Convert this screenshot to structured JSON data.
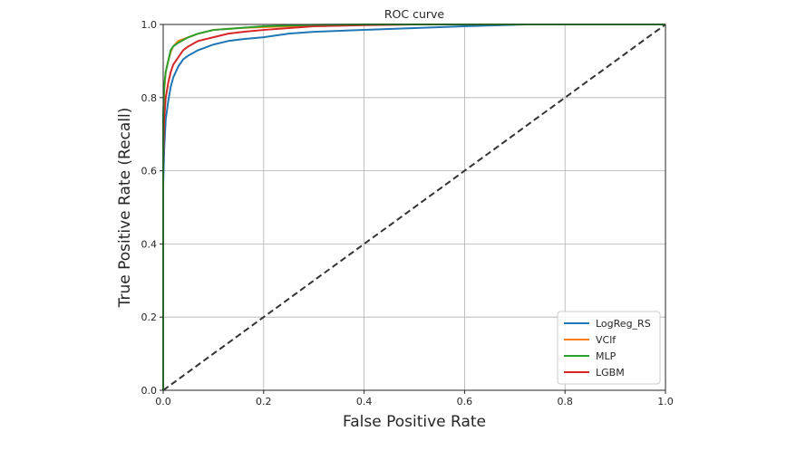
{
  "chart_data": {
    "type": "line",
    "title": "ROC curve",
    "xlabel": "False Positive Rate",
    "ylabel": "True Positive Rate (Recall)",
    "xlim": [
      0.0,
      1.0
    ],
    "ylim": [
      0.0,
      1.0
    ],
    "xticks": [
      "0.0",
      "0.2",
      "0.4",
      "0.6",
      "0.8",
      "1.0"
    ],
    "yticks": [
      "0.0",
      "0.2",
      "0.4",
      "0.6",
      "0.8",
      "1.0"
    ],
    "grid": true,
    "legend_position": "lower-right",
    "series": [
      {
        "name": "LogReg_RS",
        "color": "#1f77b4",
        "x": [
          0,
          0,
          0.002,
          0.005,
          0.01,
          0.015,
          0.02,
          0.03,
          0.04,
          0.05,
          0.07,
          0.1,
          0.13,
          0.16,
          0.2,
          0.25,
          0.3,
          0.4,
          0.5,
          0.6,
          0.72,
          1.0
        ],
        "y": [
          0,
          0.56,
          0.66,
          0.74,
          0.79,
          0.83,
          0.855,
          0.885,
          0.905,
          0.915,
          0.93,
          0.945,
          0.955,
          0.96,
          0.965,
          0.975,
          0.98,
          0.985,
          0.99,
          0.995,
          1.0,
          1.0
        ]
      },
      {
        "name": "VClf",
        "color": "#ff7f0e",
        "x": [
          0,
          0,
          0.002,
          0.005,
          0.01,
          0.015,
          0.02,
          0.03,
          0.05,
          0.07,
          0.1,
          0.15,
          0.2,
          0.3,
          0.4,
          0.5,
          1.0
        ],
        "y": [
          0,
          0.72,
          0.82,
          0.87,
          0.9,
          0.925,
          0.94,
          0.955,
          0.965,
          0.975,
          0.985,
          0.99,
          0.993,
          0.997,
          0.999,
          1.0,
          1.0
        ]
      },
      {
        "name": "MLP",
        "color": "#2ca02c",
        "x": [
          0,
          0,
          0.002,
          0.005,
          0.01,
          0.015,
          0.02,
          0.03,
          0.05,
          0.07,
          0.1,
          0.15,
          0.2,
          0.25,
          0.3,
          0.4,
          1.0
        ],
        "y": [
          0,
          0.75,
          0.83,
          0.87,
          0.9,
          0.93,
          0.94,
          0.95,
          0.965,
          0.975,
          0.985,
          0.99,
          0.995,
          0.997,
          0.999,
          1.0,
          1.0
        ]
      },
      {
        "name": "LGBM",
        "color": "#d62728",
        "x": [
          0,
          0,
          0.002,
          0.005,
          0.01,
          0.015,
          0.02,
          0.03,
          0.04,
          0.05,
          0.07,
          0.1,
          0.13,
          0.16,
          0.2,
          0.25,
          0.3,
          0.4,
          0.5,
          1.0
        ],
        "y": [
          0,
          0.62,
          0.74,
          0.8,
          0.84,
          0.87,
          0.89,
          0.91,
          0.93,
          0.94,
          0.955,
          0.965,
          0.975,
          0.98,
          0.985,
          0.99,
          0.995,
          0.998,
          1.0,
          1.0
        ]
      }
    ],
    "reference_line": {
      "x": [
        0,
        1
      ],
      "y": [
        0,
        1
      ],
      "color": "#333333",
      "style": "dashed"
    }
  }
}
